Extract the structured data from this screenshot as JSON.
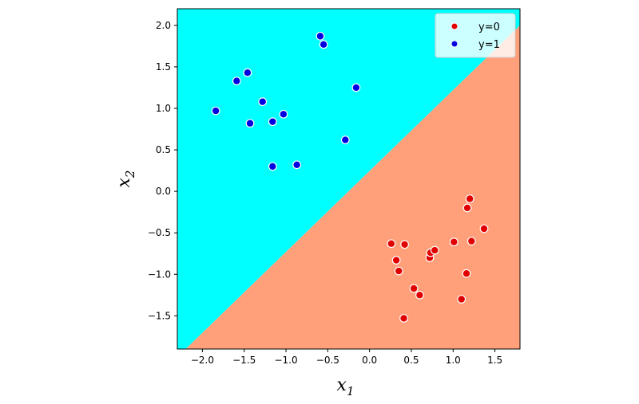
{
  "chart_data": {
    "type": "scatter",
    "title": "",
    "xlabel": "x",
    "xlabel_sub": "1",
    "ylabel": "x",
    "ylabel_sub": "2",
    "xlim": [
      -2.3,
      1.8
    ],
    "ylim": [
      -1.9,
      2.2
    ],
    "xticks": [
      -2.0,
      -1.5,
      -1.0,
      -0.5,
      0.0,
      0.5,
      1.0,
      1.5
    ],
    "xtick_labels": [
      "−2.0",
      "−1.5",
      "−1.0",
      "−0.5",
      "0.0",
      "0.5",
      "1.0",
      "1.5"
    ],
    "yticks": [
      -1.5,
      -1.0,
      -0.5,
      0.0,
      0.5,
      1.0,
      1.5,
      2.0
    ],
    "ytick_labels": [
      "−1.5",
      "−1.0",
      "−0.5",
      "0.0",
      "0.5",
      "1.0",
      "1.5",
      "2.0"
    ],
    "grid": false,
    "legend_position": "top-right",
    "decision_boundary": {
      "x": [
        -2.2,
        1.8
      ],
      "y": [
        -1.9,
        2.0
      ],
      "color_above": "#00ffff",
      "color_below": "#ffa07a"
    },
    "series": [
      {
        "name": "y=0",
        "color": "#e00000",
        "points": [
          [
            0.26,
            -0.63
          ],
          [
            0.32,
            -0.83
          ],
          [
            0.35,
            -0.96
          ],
          [
            0.42,
            -0.64
          ],
          [
            0.41,
            -1.53
          ],
          [
            0.53,
            -1.17
          ],
          [
            0.6,
            -1.25
          ],
          [
            0.72,
            -0.8
          ],
          [
            0.73,
            -0.74
          ],
          [
            0.78,
            -0.71
          ],
          [
            1.01,
            -0.61
          ],
          [
            1.1,
            -1.3
          ],
          [
            1.16,
            -0.99
          ],
          [
            1.17,
            -0.2
          ],
          [
            1.2,
            -0.09
          ],
          [
            1.22,
            -0.6
          ],
          [
            1.37,
            -0.45
          ]
        ]
      },
      {
        "name": "y=1",
        "color": "#0000e0",
        "points": [
          [
            -1.84,
            0.97
          ],
          [
            -1.59,
            1.33
          ],
          [
            -1.46,
            1.43
          ],
          [
            -1.43,
            0.82
          ],
          [
            -1.28,
            1.08
          ],
          [
            -1.16,
            0.84
          ],
          [
            -1.16,
            0.3
          ],
          [
            -1.03,
            0.93
          ],
          [
            -0.87,
            0.32
          ],
          [
            -0.59,
            1.87
          ],
          [
            -0.55,
            1.77
          ],
          [
            -0.29,
            0.62
          ],
          [
            -0.16,
            1.25
          ]
        ]
      }
    ]
  }
}
